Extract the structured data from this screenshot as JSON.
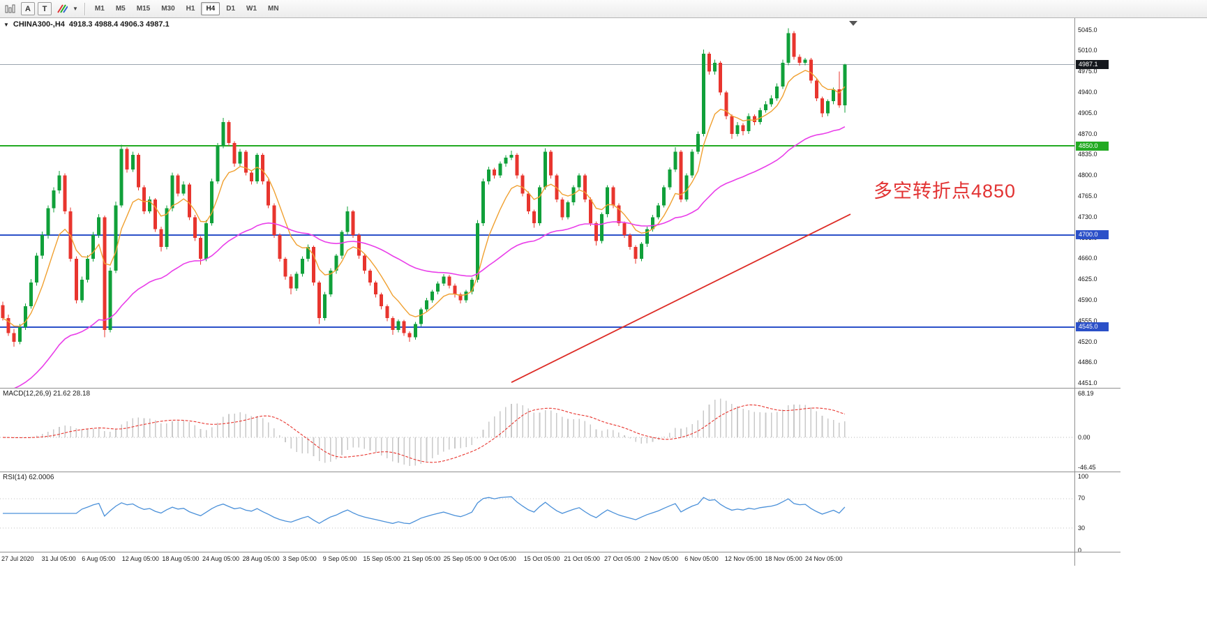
{
  "toolbar": {
    "a_label": "A",
    "t_label": "T",
    "timeframes": [
      {
        "label": "M1"
      },
      {
        "label": "M5"
      },
      {
        "label": "M15"
      },
      {
        "label": "M30"
      },
      {
        "label": "H1"
      },
      {
        "label": "H4",
        "active": true
      },
      {
        "label": "D1"
      },
      {
        "label": "W1"
      },
      {
        "label": "MN"
      }
    ]
  },
  "header": {
    "symbol": "CHINA300-,H4",
    "ohlc": "4918.3 4988.4 4906.3 4987.1"
  },
  "annotation": {
    "text": "多空转折点4850",
    "color": "#e23333"
  },
  "price_axis": {
    "top_price": 5045,
    "bottom_price": 4451,
    "labels": [
      "5045.0",
      "5010.0",
      "4975.0",
      "4940.0",
      "4905.0",
      "4870.0",
      "4835.0",
      "4800.0",
      "4765.0",
      "4730.0",
      "4695.0",
      "4660.0",
      "4625.0",
      "4590.0",
      "4555.0",
      "4520.0",
      "4486.0",
      "4451.0"
    ],
    "badges": [
      {
        "label": "4987.1",
        "price": 4987.1,
        "bg": "#15181d",
        "fg": "#ffffff"
      },
      {
        "label": "4850.0",
        "price": 4850,
        "bg": "#22aa22",
        "fg": "#ffffff"
      },
      {
        "label": "4700.0",
        "price": 4700,
        "bg": "#2b50c8",
        "fg": "#ffffff"
      },
      {
        "label": "4545.0",
        "price": 4545,
        "bg": "#2b50c8",
        "fg": "#ffffff"
      }
    ]
  },
  "chart_data": {
    "type": "candlestick",
    "symbol": "CHINA300",
    "period": "H4",
    "colors": {
      "up": "#10a03a",
      "down": "#e8352e"
    },
    "hlines": [
      {
        "name": "current-price-line",
        "price": 4987.1,
        "color": "#9aa4ae",
        "width": 1
      },
      {
        "name": "level-4850",
        "price": 4850,
        "color": "#22aa22",
        "width": 2
      },
      {
        "name": "level-4700",
        "price": 4700,
        "color": "#2b50c8",
        "width": 2
      },
      {
        "name": "level-4545",
        "price": 4545,
        "color": "#2b50c8",
        "width": 2
      }
    ],
    "ma_fast": {
      "period": 8,
      "color": "#f0a030"
    },
    "ma_slow": {
      "period": 45,
      "seed": 4428,
      "color": "#e93ee9"
    },
    "trend_line": {
      "from_index": 90,
      "from_price": 4452,
      "to_index": 150,
      "to_price": 4735,
      "color": "#dd2b25"
    },
    "candles": [
      [
        4582,
        4588,
        4556,
        4560
      ],
      [
        4560,
        4566,
        4530,
        4535
      ],
      [
        4535,
        4542,
        4512,
        4520
      ],
      [
        4520,
        4550,
        4516,
        4545
      ],
      [
        4545,
        4585,
        4540,
        4580
      ],
      [
        4580,
        4626,
        4576,
        4620
      ],
      [
        4620,
        4670,
        4615,
        4665
      ],
      [
        4665,
        4706,
        4660,
        4700
      ],
      [
        4700,
        4750,
        4694,
        4745
      ],
      [
        4745,
        4780,
        4738,
        4775
      ],
      [
        4775,
        4808,
        4770,
        4800
      ],
      [
        4800,
        4804,
        4735,
        4740
      ],
      [
        4740,
        4746,
        4655,
        4660
      ],
      [
        4660,
        4664,
        4585,
        4590
      ],
      [
        4590,
        4630,
        4586,
        4625
      ],
      [
        4625,
        4666,
        4620,
        4660
      ],
      [
        4660,
        4705,
        4655,
        4700
      ],
      [
        4700,
        4735,
        4695,
        4730
      ],
      [
        4730,
        4733,
        4528,
        4540
      ],
      [
        4540,
        4645,
        4536,
        4640
      ],
      [
        4640,
        4756,
        4636,
        4750
      ],
      [
        4750,
        4852,
        4746,
        4845
      ],
      [
        4845,
        4848,
        4805,
        4810
      ],
      [
        4810,
        4840,
        4806,
        4835
      ],
      [
        4835,
        4838,
        4775,
        4780
      ],
      [
        4780,
        4784,
        4735,
        4740
      ],
      [
        4740,
        4765,
        4736,
        4760
      ],
      [
        4760,
        4762,
        4705,
        4710
      ],
      [
        4710,
        4714,
        4672,
        4680
      ],
      [
        4680,
        4750,
        4676,
        4745
      ],
      [
        4745,
        4805,
        4740,
        4800
      ],
      [
        4800,
        4803,
        4765,
        4770
      ],
      [
        4770,
        4790,
        4766,
        4785
      ],
      [
        4785,
        4788,
        4725,
        4730
      ],
      [
        4730,
        4734,
        4690,
        4695
      ],
      [
        4695,
        4698,
        4650,
        4660
      ],
      [
        4660,
        4725,
        4656,
        4720
      ],
      [
        4720,
        4795,
        4716,
        4790
      ],
      [
        4790,
        4855,
        4786,
        4850
      ],
      [
        4850,
        4897,
        4846,
        4890
      ],
      [
        4890,
        4893,
        4850,
        4855
      ],
      [
        4855,
        4858,
        4815,
        4820
      ],
      [
        4820,
        4845,
        4816,
        4840
      ],
      [
        4840,
        4843,
        4800,
        4805
      ],
      [
        4805,
        4808,
        4785,
        4790
      ],
      [
        4790,
        4838,
        4786,
        4835
      ],
      [
        4835,
        4838,
        4785,
        4790
      ],
      [
        4790,
        4793,
        4745,
        4750
      ],
      [
        4750,
        4753,
        4695,
        4700
      ],
      [
        4700,
        4703,
        4655,
        4660
      ],
      [
        4660,
        4663,
        4625,
        4630
      ],
      [
        4630,
        4634,
        4600,
        4610
      ],
      [
        4610,
        4638,
        4606,
        4635
      ],
      [
        4635,
        4664,
        4630,
        4660
      ],
      [
        4660,
        4684,
        4655,
        4680
      ],
      [
        4680,
        4682,
        4615,
        4620
      ],
      [
        4620,
        4623,
        4550,
        4560
      ],
      [
        4560,
        4604,
        4556,
        4600
      ],
      [
        4600,
        4644,
        4596,
        4640
      ],
      [
        4640,
        4668,
        4635,
        4665
      ],
      [
        4665,
        4708,
        4660,
        4705
      ],
      [
        4705,
        4748,
        4700,
        4740
      ],
      [
        4740,
        4742,
        4695,
        4700
      ],
      [
        4700,
        4703,
        4660,
        4665
      ],
      [
        4665,
        4668,
        4635,
        4640
      ],
      [
        4640,
        4643,
        4615,
        4620
      ],
      [
        4620,
        4623,
        4595,
        4600
      ],
      [
        4600,
        4603,
        4575,
        4580
      ],
      [
        4580,
        4583,
        4555,
        4560
      ],
      [
        4560,
        4563,
        4532,
        4540
      ],
      [
        4540,
        4558,
        4536,
        4555
      ],
      [
        4555,
        4557,
        4530,
        4535
      ],
      [
        4535,
        4538,
        4520,
        4528
      ],
      [
        4528,
        4554,
        4524,
        4550
      ],
      [
        4550,
        4578,
        4546,
        4575
      ],
      [
        4575,
        4594,
        4570,
        4590
      ],
      [
        4590,
        4608,
        4586,
        4605
      ],
      [
        4605,
        4622,
        4600,
        4618
      ],
      [
        4618,
        4634,
        4614,
        4630
      ],
      [
        4630,
        4633,
        4610,
        4615
      ],
      [
        4615,
        4618,
        4595,
        4600
      ],
      [
        4600,
        4603,
        4585,
        4590
      ],
      [
        4590,
        4608,
        4586,
        4605
      ],
      [
        4605,
        4628,
        4600,
        4625
      ],
      [
        4625,
        4725,
        4620,
        4720
      ],
      [
        4720,
        4795,
        4715,
        4790
      ],
      [
        4790,
        4815,
        4785,
        4810
      ],
      [
        4810,
        4813,
        4795,
        4800
      ],
      [
        4800,
        4824,
        4796,
        4820
      ],
      [
        4820,
        4834,
        4815,
        4830
      ],
      [
        4830,
        4842,
        4826,
        4835
      ],
      [
        4835,
        4838,
        4795,
        4800
      ],
      [
        4800,
        4803,
        4765,
        4770
      ],
      [
        4770,
        4773,
        4735,
        4740
      ],
      [
        4740,
        4743,
        4712,
        4720
      ],
      [
        4720,
        4784,
        4716,
        4780
      ],
      [
        4780,
        4846,
        4776,
        4840
      ],
      [
        4840,
        4843,
        4795,
        4800
      ],
      [
        4800,
        4803,
        4755,
        4760
      ],
      [
        4760,
        4763,
        4725,
        4730
      ],
      [
        4730,
        4758,
        4726,
        4755
      ],
      [
        4755,
        4784,
        4750,
        4780
      ],
      [
        4780,
        4804,
        4776,
        4800
      ],
      [
        4800,
        4803,
        4755,
        4760
      ],
      [
        4760,
        4763,
        4715,
        4720
      ],
      [
        4720,
        4723,
        4682,
        4690
      ],
      [
        4690,
        4738,
        4686,
        4735
      ],
      [
        4735,
        4784,
        4730,
        4780
      ],
      [
        4780,
        4783,
        4745,
        4750
      ],
      [
        4750,
        4753,
        4715,
        4720
      ],
      [
        4720,
        4723,
        4695,
        4700
      ],
      [
        4700,
        4703,
        4675,
        4680
      ],
      [
        4680,
        4683,
        4652,
        4660
      ],
      [
        4660,
        4688,
        4656,
        4685
      ],
      [
        4685,
        4714,
        4680,
        4710
      ],
      [
        4710,
        4734,
        4706,
        4730
      ],
      [
        4730,
        4754,
        4726,
        4750
      ],
      [
        4750,
        4784,
        4746,
        4780
      ],
      [
        4780,
        4814,
        4776,
        4810
      ],
      [
        4810,
        4848,
        4806,
        4840
      ],
      [
        4840,
        4843,
        4755,
        4760
      ],
      [
        4760,
        4804,
        4756,
        4800
      ],
      [
        4800,
        4844,
        4796,
        4840
      ],
      [
        4840,
        4874,
        4836,
        4870
      ],
      [
        4870,
        5012,
        4866,
        5005
      ],
      [
        5005,
        5008,
        4970,
        4975
      ],
      [
        4975,
        4995,
        4970,
        4990
      ],
      [
        4990,
        4993,
        4935,
        4940
      ],
      [
        4940,
        4943,
        4895,
        4900
      ],
      [
        4900,
        4903,
        4862,
        4870
      ],
      [
        4870,
        4890,
        4866,
        4885
      ],
      [
        4885,
        4888,
        4868,
        4875
      ],
      [
        4875,
        4905,
        4870,
        4900
      ],
      [
        4900,
        4903,
        4885,
        4890
      ],
      [
        4890,
        4914,
        4886,
        4910
      ],
      [
        4910,
        4925,
        4906,
        4920
      ],
      [
        4920,
        4935,
        4916,
        4930
      ],
      [
        4930,
        4955,
        4926,
        4950
      ],
      [
        4950,
        4995,
        4946,
        4990
      ],
      [
        4990,
        5048,
        4986,
        5040
      ],
      [
        5040,
        5043,
        4995,
        5000
      ],
      [
        5000,
        5004,
        4985,
        4990
      ],
      [
        4990,
        4998,
        4986,
        4995
      ],
      [
        4995,
        4998,
        4955,
        4960
      ],
      [
        4960,
        4963,
        4925,
        4930
      ],
      [
        4930,
        4933,
        4898,
        4905
      ],
      [
        4905,
        4928,
        4900,
        4925
      ],
      [
        4925,
        4948,
        4920,
        4945
      ],
      [
        4945,
        4975,
        4914,
        4918
      ],
      [
        4918,
        4988,
        4906,
        4987
      ]
    ]
  },
  "macd": {
    "label": "MACD(12,26,9) 21.62 28.18",
    "fast": 12,
    "slow": 26,
    "signal": 9,
    "max": 68.19,
    "min": -46.45,
    "axis": [
      {
        "text": "68.19",
        "value": 68.19
      },
      {
        "text": "0.00",
        "value": 0
      },
      {
        "text": "-46.45",
        "value": -46.45
      }
    ],
    "bar_color": "#c9c9c9",
    "signal_color": "#e8352e"
  },
  "rsi": {
    "label": "RSI(14) 62.0006",
    "period": 14,
    "axis": [
      {
        "text": "100",
        "value": 100
      },
      {
        "text": "70",
        "value": 70
      },
      {
        "text": "30",
        "value": 30
      },
      {
        "text": "0",
        "value": 0
      }
    ],
    "levels": [
      70,
      30
    ],
    "color": "#4a90d9"
  },
  "timeline": {
    "labels": [
      "27 Jul 2020",
      "31 Jul 05:00",
      "6 Aug 05:00",
      "12 Aug 05:00",
      "18 Aug 05:00",
      "24 Aug 05:00",
      "28 Aug 05:00",
      "3 Sep 05:00",
      "9 Sep 05:00",
      "15 Sep 05:00",
      "21 Sep 05:00",
      "25 Sep 05:00",
      "9 Oct 05:00",
      "15 Oct 05:00",
      "21 Oct 05:00",
      "27 Oct 05:00",
      "2 Nov 05:00",
      "6 Nov 05:00",
      "12 Nov 05:00",
      "18 Nov 05:00",
      "24 Nov 05:00"
    ]
  }
}
